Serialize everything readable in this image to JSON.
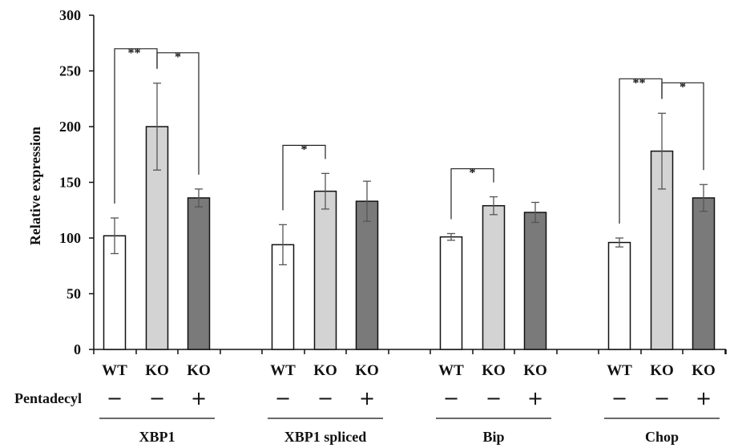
{
  "chart_data": {
    "type": "bar",
    "ylabel": "Relative expression",
    "ylim": [
      0,
      300
    ],
    "yticks": [
      0,
      50,
      100,
      150,
      200,
      250,
      300
    ],
    "grid": false,
    "treatment_row_label": "Pentadecyl",
    "colors": {
      "WT": "#ffffff",
      "KO": "#d3d3d3",
      "KO_treated": "#7a7a7a",
      "edge": "#111111",
      "error": "#555555"
    },
    "groups": [
      {
        "name": "XBP1",
        "bars": [
          {
            "label": "WT",
            "treatment": "−",
            "value": 102,
            "error": 16,
            "color_key": "WT"
          },
          {
            "label": "KO",
            "treatment": "−",
            "value": 200,
            "error": 39,
            "color_key": "KO"
          },
          {
            "label": "KO",
            "treatment": "+",
            "value": 136,
            "error": 8,
            "color_key": "KO_treated"
          }
        ],
        "significance": [
          {
            "from": 0,
            "to": 1,
            "label": "**"
          },
          {
            "from": 1,
            "to": 2,
            "label": "*"
          }
        ]
      },
      {
        "name": "XBP1 spliced",
        "bars": [
          {
            "label": "WT",
            "treatment": "−",
            "value": 94,
            "error": 18,
            "color_key": "WT"
          },
          {
            "label": "KO",
            "treatment": "−",
            "value": 142,
            "error": 16,
            "color_key": "KO"
          },
          {
            "label": "KO",
            "treatment": "+",
            "value": 133,
            "error": 18,
            "color_key": "KO_treated"
          }
        ],
        "significance": [
          {
            "from": 0,
            "to": 1,
            "label": "*"
          }
        ]
      },
      {
        "name": "Bip",
        "bars": [
          {
            "label": "WT",
            "treatment": "−",
            "value": 101,
            "error": 3,
            "color_key": "WT"
          },
          {
            "label": "KO",
            "treatment": "−",
            "value": 129,
            "error": 8,
            "color_key": "KO"
          },
          {
            "label": "KO",
            "treatment": "+",
            "value": 123,
            "error": 9,
            "color_key": "KO_treated"
          }
        ],
        "significance": [
          {
            "from": 0,
            "to": 1,
            "label": "*"
          }
        ]
      },
      {
        "name": "Chop",
        "bars": [
          {
            "label": "WT",
            "treatment": "−",
            "value": 96,
            "error": 4,
            "color_key": "WT"
          },
          {
            "label": "KO",
            "treatment": "−",
            "value": 178,
            "error": 34,
            "color_key": "KO"
          },
          {
            "label": "KO",
            "treatment": "+",
            "value": 136,
            "error": 12,
            "color_key": "KO_treated"
          }
        ],
        "significance": [
          {
            "from": 0,
            "to": 1,
            "label": "**"
          },
          {
            "from": 1,
            "to": 2,
            "label": "*"
          }
        ]
      }
    ]
  }
}
